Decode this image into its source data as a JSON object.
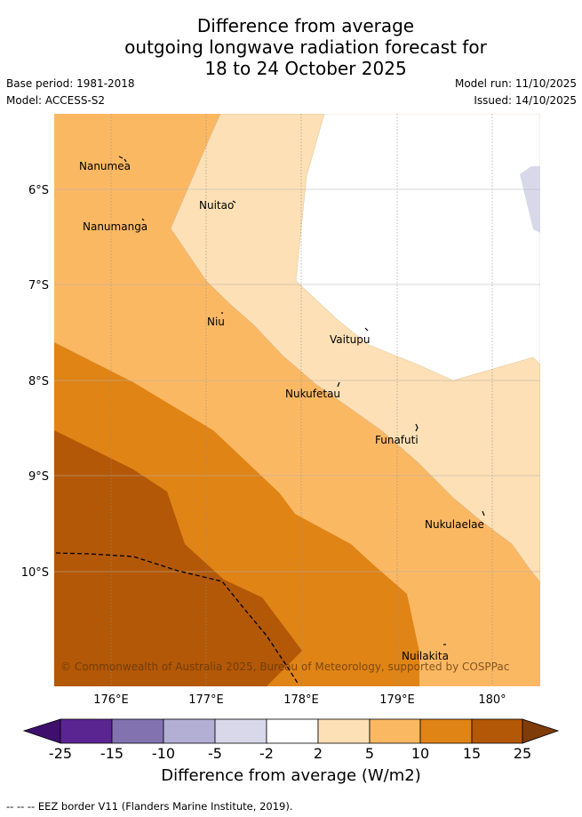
{
  "header": {
    "title_line1": "Difference from average",
    "title_line2": "outgoing longwave radiation forecast for",
    "title_line3": "18 to 24 October 2025",
    "base_period": "Base period: 1981-2018",
    "model": "Model: ACCESS-S2",
    "model_run": "Model run: 11/10/2025",
    "issued": "Issued: 14/10/2025"
  },
  "map": {
    "lon_labels": [
      "176°E",
      "177°E",
      "178°E",
      "179°E",
      "180°"
    ],
    "lat_labels": [
      "6°S",
      "7°S",
      "8°S",
      "9°S",
      "10°S"
    ],
    "places": [
      "Nanumea",
      "Nuitao",
      "Nanumanga",
      "Niu",
      "Vaitupu",
      "Nukufetau",
      "Funafuti",
      "Nukulaelae",
      "Nuilakita"
    ],
    "copyright": "© Commonwealth of Australia 2025, Bureau of Meteorology, supported by COSPPac"
  },
  "colorbar": {
    "labels": [
      "-25",
      "-15",
      "-10",
      "-5",
      "-2",
      "2",
      "5",
      "10",
      "15",
      "25"
    ],
    "colors": [
      "#3f0f6e",
      "#5a2591",
      "#8273b0",
      "#b3aed4",
      "#d8d8ea",
      "#ffffff",
      "#fde0b5",
      "#fbb863",
      "#e08416",
      "#b35806",
      "#7f3b08"
    ],
    "title": "Difference from average (W/m2)"
  },
  "footer": {
    "text": "--  --  -- EEZ border V11 (Flanders Marine Institute, 2019)."
  }
}
